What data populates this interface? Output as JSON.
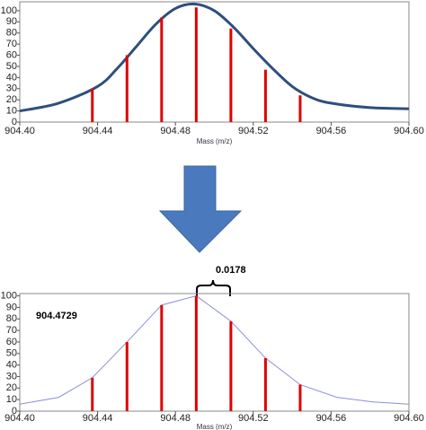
{
  "chart_data": [
    {
      "type": "line",
      "x_label": "Mass (m/z)",
      "xlim": [
        904.4,
        904.6
      ],
      "xticks": [
        {
          "value": 904.4,
          "label": "904.40"
        },
        {
          "value": 904.44,
          "label": "904.44"
        },
        {
          "value": 904.48,
          "label": "904.48"
        },
        {
          "value": 904.52,
          "label": "904.52"
        },
        {
          "value": 904.56,
          "label": "904.56"
        },
        {
          "value": 904.6,
          "label": "904.60"
        }
      ],
      "ylim": [
        0,
        108
      ],
      "yticks": [
        0,
        10,
        20,
        30,
        40,
        50,
        60,
        70,
        80,
        90,
        100
      ],
      "series": [
        {
          "style": "smooth",
          "color": "#2e4f7c",
          "x": [
            904.4,
            904.42,
            904.44,
            904.45,
            904.46,
            904.47,
            904.48,
            904.49,
            904.5,
            904.51,
            904.52,
            904.53,
            904.54,
            904.55,
            904.56,
            904.58,
            904.6
          ],
          "values": [
            10,
            17,
            32,
            48,
            68,
            88,
            102,
            106,
            100,
            85,
            66,
            48,
            32,
            22,
            17,
            13,
            12
          ]
        },
        {
          "style": "stick",
          "color": "#e00000",
          "x": [
            904.4373,
            904.4551,
            904.4729,
            904.4907,
            904.5085,
            904.5263,
            904.5441
          ],
          "values": [
            30,
            60,
            94,
            103,
            84,
            47,
            24
          ]
        }
      ]
    },
    {
      "type": "line",
      "x_label": "Mass (m/z)",
      "xlim": [
        904.4,
        904.6
      ],
      "xticks": [
        {
          "value": 904.4,
          "label": "904.40"
        },
        {
          "value": 904.44,
          "label": "904.44"
        },
        {
          "value": 904.48,
          "label": "904.48"
        },
        {
          "value": 904.52,
          "label": "904.52"
        },
        {
          "value": 904.56,
          "label": "904.56"
        },
        {
          "value": 904.6,
          "label": "904.60"
        }
      ],
      "ylim": [
        0,
        102
      ],
      "yticks": [
        0,
        10,
        20,
        30,
        40,
        50,
        60,
        70,
        80,
        90,
        100
      ],
      "series": [
        {
          "style": "straight",
          "color": "#8a8fd8",
          "x": [
            904.4,
            904.42,
            904.4373,
            904.4551,
            904.4729,
            904.4907,
            904.5085,
            904.5263,
            904.5441,
            904.563,
            904.5815,
            904.6
          ],
          "values": [
            6,
            12,
            29,
            60,
            92,
            100,
            78,
            46,
            23,
            12,
            8,
            6
          ]
        },
        {
          "style": "stick",
          "color": "#e00000",
          "x": [
            904.4373,
            904.4551,
            904.4729,
            904.4907,
            904.5085,
            904.5263,
            904.5441
          ],
          "values": [
            29,
            60,
            92,
            100,
            78,
            46,
            23
          ]
        }
      ],
      "annotations": [
        {
          "text": "904.4729"
        },
        {
          "text": "0.0178"
        }
      ]
    }
  ]
}
